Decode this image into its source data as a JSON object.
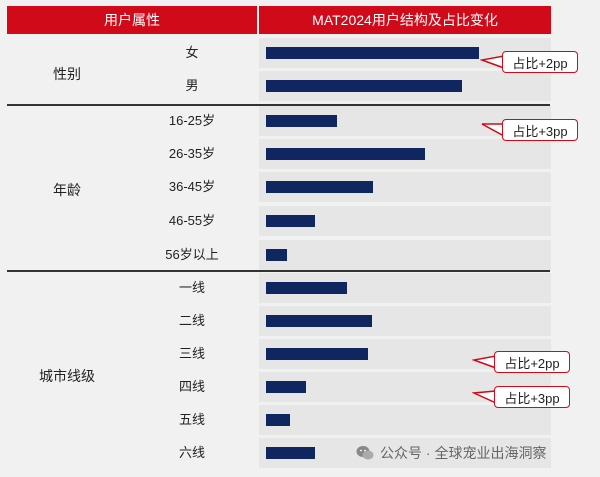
{
  "header": {
    "left_title": "用户属性",
    "right_title": "MAT2024用户结构及占比变化"
  },
  "groups": [
    {
      "label": "性别"
    },
    {
      "label": "年龄"
    },
    {
      "label": "城市线级"
    }
  ],
  "chart_data": {
    "type": "bar",
    "orientation": "horizontal",
    "title": "MAT2024用户结构及占比变化",
    "categories": [
      "女",
      "男",
      "16-25岁",
      "26-35岁",
      "36-45岁",
      "46-55岁",
      "56岁以上",
      "一线",
      "二线",
      "三线",
      "四线",
      "五线",
      "六线"
    ],
    "category_groups": [
      "性别",
      "性别",
      "年龄",
      "年龄",
      "年龄",
      "年龄",
      "年龄",
      "城市线级",
      "城市线级",
      "城市线级",
      "城市线级",
      "城市线级",
      "城市线级"
    ],
    "values": [
      213,
      196,
      71,
      159,
      107,
      49,
      21,
      81,
      106,
      102,
      40,
      24,
      49
    ],
    "value_units": "relative bar length (unlabeled)",
    "bar_color": "#0f2660",
    "annotations": [
      {
        "text": "占比+2pp",
        "target": "女"
      },
      {
        "text": "占比+3pp",
        "target": "16-25岁"
      },
      {
        "text": "占比+2pp",
        "target": "三线"
      },
      {
        "text": "占比+3pp",
        "target": "四线"
      }
    ]
  },
  "colors": {
    "header_bg": "#d10a1a",
    "bar": "#0f2660",
    "callout_border": "#d10a1a"
  },
  "watermark": {
    "text": "公众号 · 全球宠业出海洞察",
    "icon": "wechat-icon"
  }
}
